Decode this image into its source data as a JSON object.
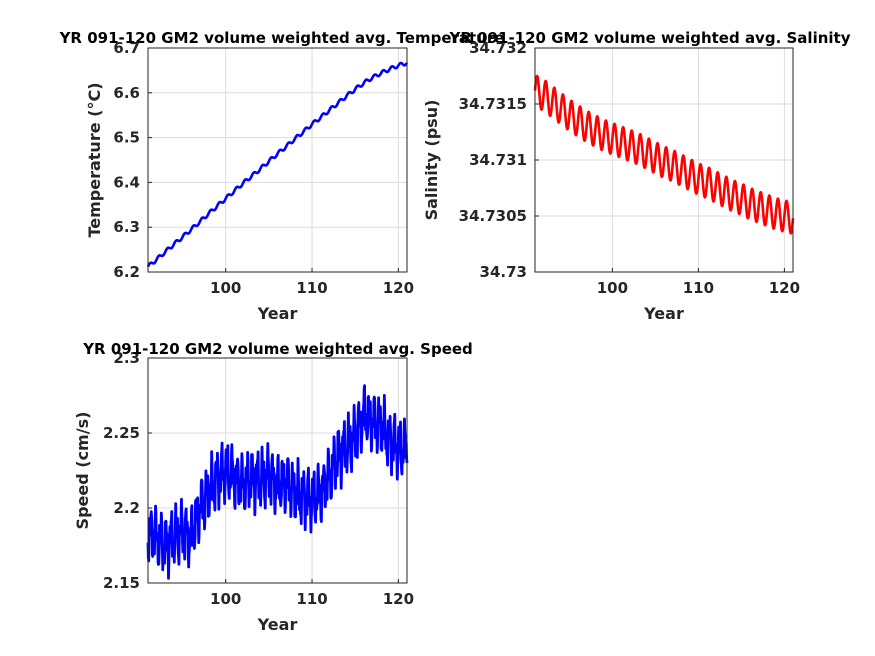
{
  "chart_data": [
    {
      "type": "line",
      "title": "YR 091-120 GM2 volume weighted avg. Temperature",
      "xlabel": "Year",
      "ylabel": "Temperature (°C)",
      "xlim": [
        91,
        121
      ],
      "ylim": [
        6.2,
        6.7
      ],
      "xticks": [
        100,
        110,
        120
      ],
      "xtick_labels": [
        "100",
        "110",
        "120"
      ],
      "yticks": [
        6.2,
        6.3,
        6.4,
        6.5,
        6.6,
        6.7
      ],
      "ytick_labels": [
        "6.2",
        "6.3",
        "6.4",
        "6.5",
        "6.6",
        "6.7"
      ],
      "grid": true,
      "series": [
        {
          "color": "#0000ff",
          "x": [
            91,
            92,
            93,
            94,
            95,
            96,
            97,
            98,
            99,
            100,
            101,
            102,
            103,
            104,
            105,
            106,
            107,
            108,
            109,
            110,
            111,
            112,
            113,
            114,
            115,
            116,
            117,
            118,
            119,
            120,
            121
          ],
          "values": [
            6.212,
            6.228,
            6.245,
            6.262,
            6.278,
            6.295,
            6.312,
            6.33,
            6.347,
            6.364,
            6.381,
            6.398,
            6.414,
            6.43,
            6.447,
            6.464,
            6.48,
            6.497,
            6.513,
            6.53,
            6.545,
            6.561,
            6.577,
            6.593,
            6.608,
            6.622,
            6.634,
            6.644,
            6.653,
            6.661,
            6.667
          ],
          "seasonal_amplitude": 0.004
        }
      ]
    },
    {
      "type": "line",
      "title": "YR 091-120 GM2 volume weighted avg. Salinity",
      "xlabel": "Year",
      "ylabel": "Salinity (psu)",
      "xlim": [
        91,
        121
      ],
      "ylim": [
        34.73,
        34.732
      ],
      "xticks": [
        100,
        110,
        120
      ],
      "xtick_labels": [
        "100",
        "110",
        "120"
      ],
      "yticks": [
        34.73,
        34.7305,
        34.731,
        34.7315,
        34.732
      ],
      "ytick_labels": [
        "34.73",
        "34.7305",
        "34.731",
        "34.7315",
        "34.732"
      ],
      "grid": true,
      "series": [
        {
          "color": "#ff0000",
          "x": [
            91,
            92,
            93,
            94,
            95,
            96,
            97,
            98,
            99,
            100,
            101,
            102,
            103,
            104,
            105,
            106,
            107,
            108,
            109,
            110,
            111,
            112,
            113,
            114,
            115,
            116,
            117,
            118,
            119,
            120,
            121
          ],
          "values": [
            34.73162,
            34.73158,
            34.73152,
            34.73146,
            34.7314,
            34.73135,
            34.7313,
            34.73126,
            34.73122,
            34.73119,
            34.73116,
            34.73113,
            34.7311,
            34.73106,
            34.73102,
            34.73098,
            34.73095,
            34.73091,
            34.73087,
            34.73083,
            34.7308,
            34.73076,
            34.73072,
            34.73068,
            34.73065,
            34.73061,
            34.73058,
            34.73055,
            34.73052,
            34.7305,
            34.73048
          ],
          "seasonal_amplitude": 0.00014
        }
      ]
    },
    {
      "type": "line",
      "title": "YR 091-120 GM2 volume weighted avg. Speed",
      "xlabel": "Year",
      "ylabel": "Speed (cm/s)",
      "xlim": [
        91,
        121
      ],
      "ylim": [
        2.15,
        2.3
      ],
      "xticks": [
        100,
        110,
        120
      ],
      "xtick_labels": [
        "100",
        "110",
        "120"
      ],
      "yticks": [
        2.15,
        2.2,
        2.25,
        2.3
      ],
      "ytick_labels": [
        "2.15",
        "2.2",
        "2.25",
        "2.3"
      ],
      "grid": true,
      "series": [
        {
          "color": "#0000ff",
          "x": [
            91,
            92,
            93,
            94,
            95,
            96,
            97,
            98,
            99,
            100,
            101,
            102,
            103,
            104,
            105,
            106,
            107,
            108,
            109,
            110,
            111,
            112,
            113,
            114,
            115,
            116,
            117,
            118,
            119,
            120,
            121
          ],
          "values": [
            2.185,
            2.18,
            2.175,
            2.18,
            2.185,
            2.18,
            2.2,
            2.21,
            2.22,
            2.225,
            2.22,
            2.215,
            2.22,
            2.218,
            2.222,
            2.215,
            2.218,
            2.21,
            2.208,
            2.205,
            2.21,
            2.22,
            2.235,
            2.24,
            2.248,
            2.262,
            2.258,
            2.255,
            2.245,
            2.24,
            2.238
          ],
          "seasonal_amplitude": 0.018
        }
      ]
    }
  ]
}
